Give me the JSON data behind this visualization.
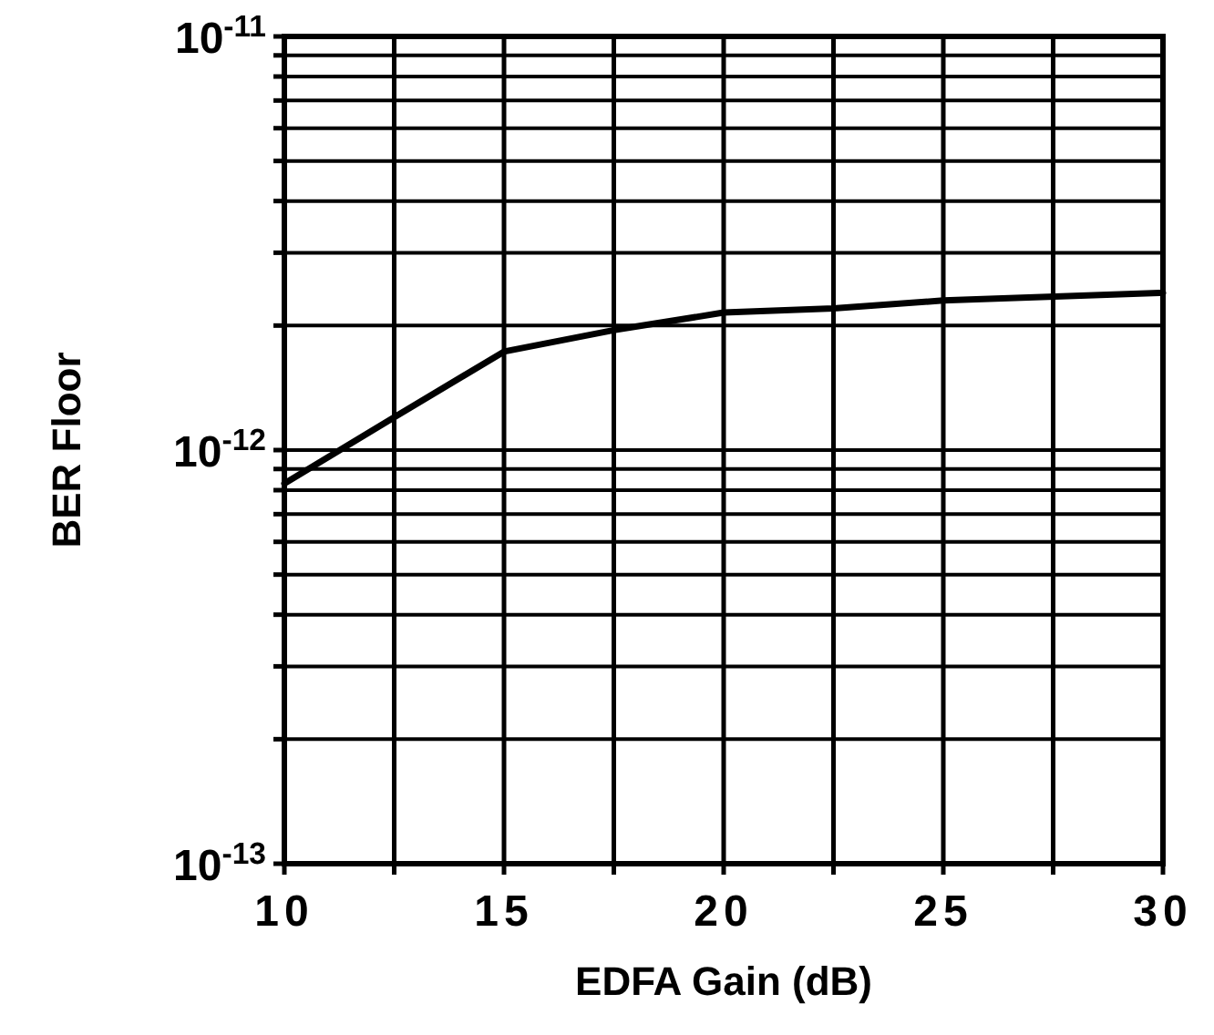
{
  "chart_data": {
    "type": "line",
    "xlabel": "EDFA Gain (dB)",
    "ylabel": "BER Floor",
    "log": "y",
    "grid": true,
    "marker": "none",
    "line_style": "solid",
    "x": [
      10,
      12.5,
      15,
      17.5,
      20,
      22.5,
      25,
      30
    ],
    "series": [
      {
        "color": "#000000",
        "values": [
          8.3e-13,
          1.2e-12,
          1.73e-12,
          1.95e-12,
          2.15e-12,
          2.2e-12,
          2.3e-12,
          2.4e-12
        ]
      }
    ],
    "xlim": [
      10,
      30
    ],
    "xticks": [
      10,
      {
        "value": 12.5,
        "label": null
      },
      15,
      {
        "value": 17.5,
        "label": null
      },
      20,
      {
        "value": 22.5,
        "label": null
      },
      25,
      {
        "value": 27.5,
        "label": null
      },
      30
    ],
    "ylim": [
      1e-13,
      1e-11
    ],
    "yticks": [
      {
        "value": 1e-13,
        "label": "10$^{-13}$"
      },
      {
        "value": 2e-13,
        "label": null
      },
      {
        "value": 3e-13,
        "label": null
      },
      {
        "value": 4e-13,
        "label": null
      },
      {
        "value": 5e-13,
        "label": null
      },
      {
        "value": 6e-13,
        "label": null
      },
      {
        "value": 7e-13,
        "label": null
      },
      {
        "value": 8e-13,
        "label": null
      },
      {
        "value": 9e-13,
        "label": null
      },
      {
        "value": 1e-12,
        "label": "10$^{-12}$"
      },
      {
        "value": 2e-12,
        "label": null
      },
      {
        "value": 3e-12,
        "label": null
      },
      {
        "value": 4e-12,
        "label": null
      },
      {
        "value": 5e-12,
        "label": null
      },
      {
        "value": 6e-12,
        "label": null
      },
      {
        "value": 7e-12,
        "label": null
      },
      {
        "value": 8e-12,
        "label": null
      },
      {
        "value": 9e-12,
        "label": null
      },
      {
        "value": 1e-11,
        "label": "10$^{-11}$"
      }
    ]
  }
}
